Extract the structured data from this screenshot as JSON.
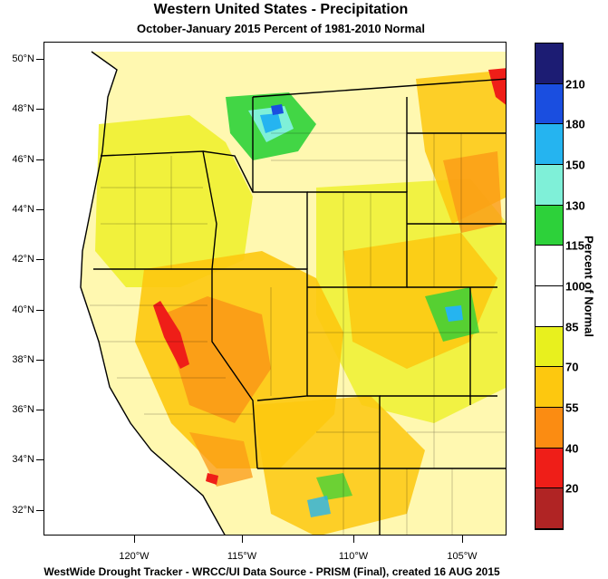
{
  "title": "Western United States - Precipitation",
  "subtitle": "October-January 2015  Percent of 1981-2010 Normal",
  "credit": "WestWide Drought Tracker - WRCC/UI  Data Source - PRISM (Final), created 16 AUG 2015",
  "lat_labels": [
    "50°N",
    "48°N",
    "46°N",
    "44°N",
    "42°N",
    "40°N",
    "38°N",
    "36°N",
    "34°N",
    "32°N"
  ],
  "lon_labels": [
    "120°W",
    "115°W",
    "110°W",
    "105°W"
  ],
  "colorbar": {
    "title": "Percent of Normal",
    "tick_labels": [
      "210",
      "180",
      "150",
      "130",
      "115",
      "100",
      "85",
      "70",
      "55",
      "40",
      "20"
    ],
    "colors": [
      "#1c1c73",
      "#1a4ee0",
      "#25b4f0",
      "#7ff0d8",
      "#2dd13a",
      "#ffffff",
      "#ffffff",
      "#e8f01e",
      "#fdc80f",
      "#fb8c12",
      "#ef1e18",
      "#b02424"
    ]
  },
  "legend_icon": "colorbar-icon"
}
